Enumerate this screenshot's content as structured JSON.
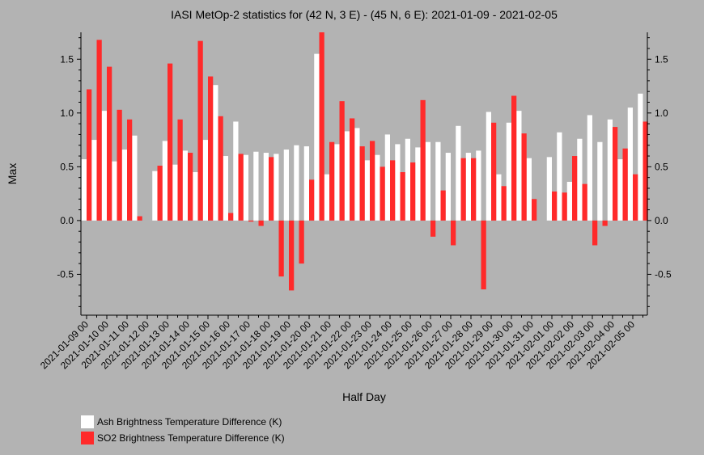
{
  "chart_data": {
    "type": "bar",
    "title": "IASI MetOp-2 statistics for (42 N, 3 E) - (45 N, 6 E): 2021-01-09 - 2021-02-05",
    "xlabel": "Half Day",
    "ylabel": "Max",
    "ylim": [
      -0.88,
      1.75
    ],
    "yticks": [
      -0.5,
      0.0,
      0.5,
      1.0,
      1.5
    ],
    "ytick_labels": [
      "-0.5",
      "0.0",
      "0.5",
      "1.0",
      "1.5"
    ],
    "grid": false,
    "legend_position": "bottom-left",
    "categories": [
      "2021-01-09 00",
      "2021-01-09 12",
      "2021-01-10 00",
      "2021-01-10 12",
      "2021-01-11 00",
      "2021-01-11 12",
      "2021-01-12 00",
      "2021-01-12 12",
      "2021-01-13 00",
      "2021-01-13 12",
      "2021-01-14 00",
      "2021-01-14 12",
      "2021-01-15 00",
      "2021-01-15 12",
      "2021-01-16 00",
      "2021-01-16 12",
      "2021-01-17 00",
      "2021-01-17 12",
      "2021-01-18 00",
      "2021-01-18 12",
      "2021-01-19 00",
      "2021-01-19 12",
      "2021-01-20 00",
      "2021-01-20 12",
      "2021-01-21 00",
      "2021-01-21 12",
      "2021-01-22 00",
      "2021-01-22 12",
      "2021-01-23 00",
      "2021-01-23 12",
      "2021-01-24 00",
      "2021-01-24 12",
      "2021-01-25 00",
      "2021-01-25 12",
      "2021-01-26 00",
      "2021-01-26 12",
      "2021-01-27 00",
      "2021-01-27 12",
      "2021-01-28 00",
      "2021-01-28 12",
      "2021-01-29 00",
      "2021-01-29 12",
      "2021-01-30 00",
      "2021-01-30 12",
      "2021-01-31 00",
      "2021-01-31 12",
      "2021-02-01 00",
      "2021-02-01 12",
      "2021-02-02 00",
      "2021-02-02 12",
      "2021-02-03 00",
      "2021-02-03 12",
      "2021-02-04 00",
      "2021-02-04 12",
      "2021-02-05 00",
      "2021-02-05 12"
    ],
    "tick_labels": [
      "2021-01-09 00",
      "2021-01-10 00",
      "2021-01-11 00",
      "2021-01-12 00",
      "2021-01-13 00",
      "2021-01-14 00",
      "2021-01-15 00",
      "2021-01-16 00",
      "2021-01-17 00",
      "2021-01-18 00",
      "2021-01-19 00",
      "2021-01-20 00",
      "2021-01-21 00",
      "2021-01-22 00",
      "2021-01-23 00",
      "2021-01-24 00",
      "2021-01-25 00",
      "2021-01-26 00",
      "2021-01-27 00",
      "2021-01-28 00",
      "2021-01-29 00",
      "2021-01-30 00",
      "2021-01-31 00",
      "2021-02-01 00",
      "2021-02-02 00",
      "2021-02-03 00",
      "2021-02-04 00",
      "2021-02-05 00"
    ],
    "series": [
      {
        "name": "Ash Brightness Temperature Difference (K)",
        "color": "#ffffff",
        "values": [
          0.57,
          0.75,
          1.02,
          0.55,
          0.66,
          0.79,
          null,
          0.46,
          0.74,
          0.52,
          0.65,
          0.45,
          0.75,
          1.26,
          0.6,
          0.92,
          0.61,
          0.64,
          0.63,
          0.62,
          0.66,
          0.7,
          0.69,
          1.55,
          0.43,
          0.71,
          0.83,
          0.86,
          0.56,
          0.61,
          0.8,
          0.71,
          0.76,
          0.68,
          0.73,
          0.73,
          0.63,
          0.88,
          0.63,
          0.65,
          1.01,
          0.43,
          0.91,
          1.02,
          0.58,
          null,
          0.59,
          0.82,
          0.36,
          0.76,
          0.98,
          0.73,
          0.94,
          0.57,
          1.05,
          1.18
        ]
      },
      {
        "name": "SO2 Brightness Temperature Difference (K)",
        "color": "#ff2a2a",
        "values": [
          1.22,
          1.68,
          1.43,
          1.03,
          0.94,
          0.04,
          null,
          0.51,
          1.46,
          0.94,
          0.63,
          1.67,
          1.34,
          0.97,
          0.07,
          0.62,
          -0.01,
          -0.05,
          0.59,
          -0.52,
          -0.65,
          -0.4,
          0.38,
          1.75,
          0.73,
          1.11,
          0.95,
          0.69,
          0.74,
          0.5,
          0.56,
          0.45,
          0.54,
          1.12,
          -0.15,
          0.28,
          -0.23,
          0.58,
          0.58,
          -0.64,
          0.91,
          0.32,
          1.16,
          0.81,
          0.2,
          null,
          0.27,
          0.26,
          0.6,
          0.34,
          -0.23,
          -0.05,
          0.87,
          0.67,
          0.43,
          0.92
        ]
      }
    ]
  }
}
